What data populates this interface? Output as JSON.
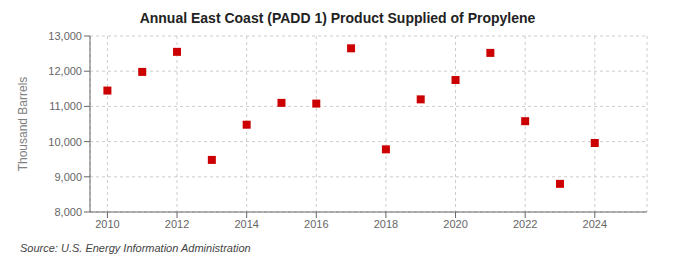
{
  "chart_data": {
    "type": "scatter",
    "title": "Annual East Coast (PADD 1) Product Supplied of Propylene",
    "y_label": "Thousand Barrels",
    "annotations": [
      "Source: U.S. Energy Information Administration"
    ],
    "x": [
      2010,
      2011,
      2012,
      2013,
      2014,
      2015,
      2016,
      2017,
      2018,
      2019,
      2020,
      2021,
      2022,
      2023,
      2024
    ],
    "values": [
      11450,
      11980,
      12550,
      9480,
      10480,
      11100,
      11080,
      12650,
      9780,
      11200,
      11750,
      12520,
      10580,
      8800,
      9960
    ],
    "color": "#cc0000",
    "marker": "square",
    "xlim": [
      2009.5,
      2025.5
    ],
    "ylim": [
      8000,
      13000
    ],
    "xticks": [
      2010,
      2012,
      2014,
      2016,
      2018,
      2020,
      2022,
      2024
    ],
    "yticks": [
      {
        "value": 8000,
        "label": "8,000"
      },
      {
        "value": 9000,
        "label": "9,000"
      },
      {
        "value": 10000,
        "label": "10,000"
      },
      {
        "value": 11000,
        "label": "11,000"
      },
      {
        "value": 12000,
        "label": "12,000"
      },
      {
        "value": 13000,
        "label": "13,000"
      }
    ],
    "grid": true
  }
}
